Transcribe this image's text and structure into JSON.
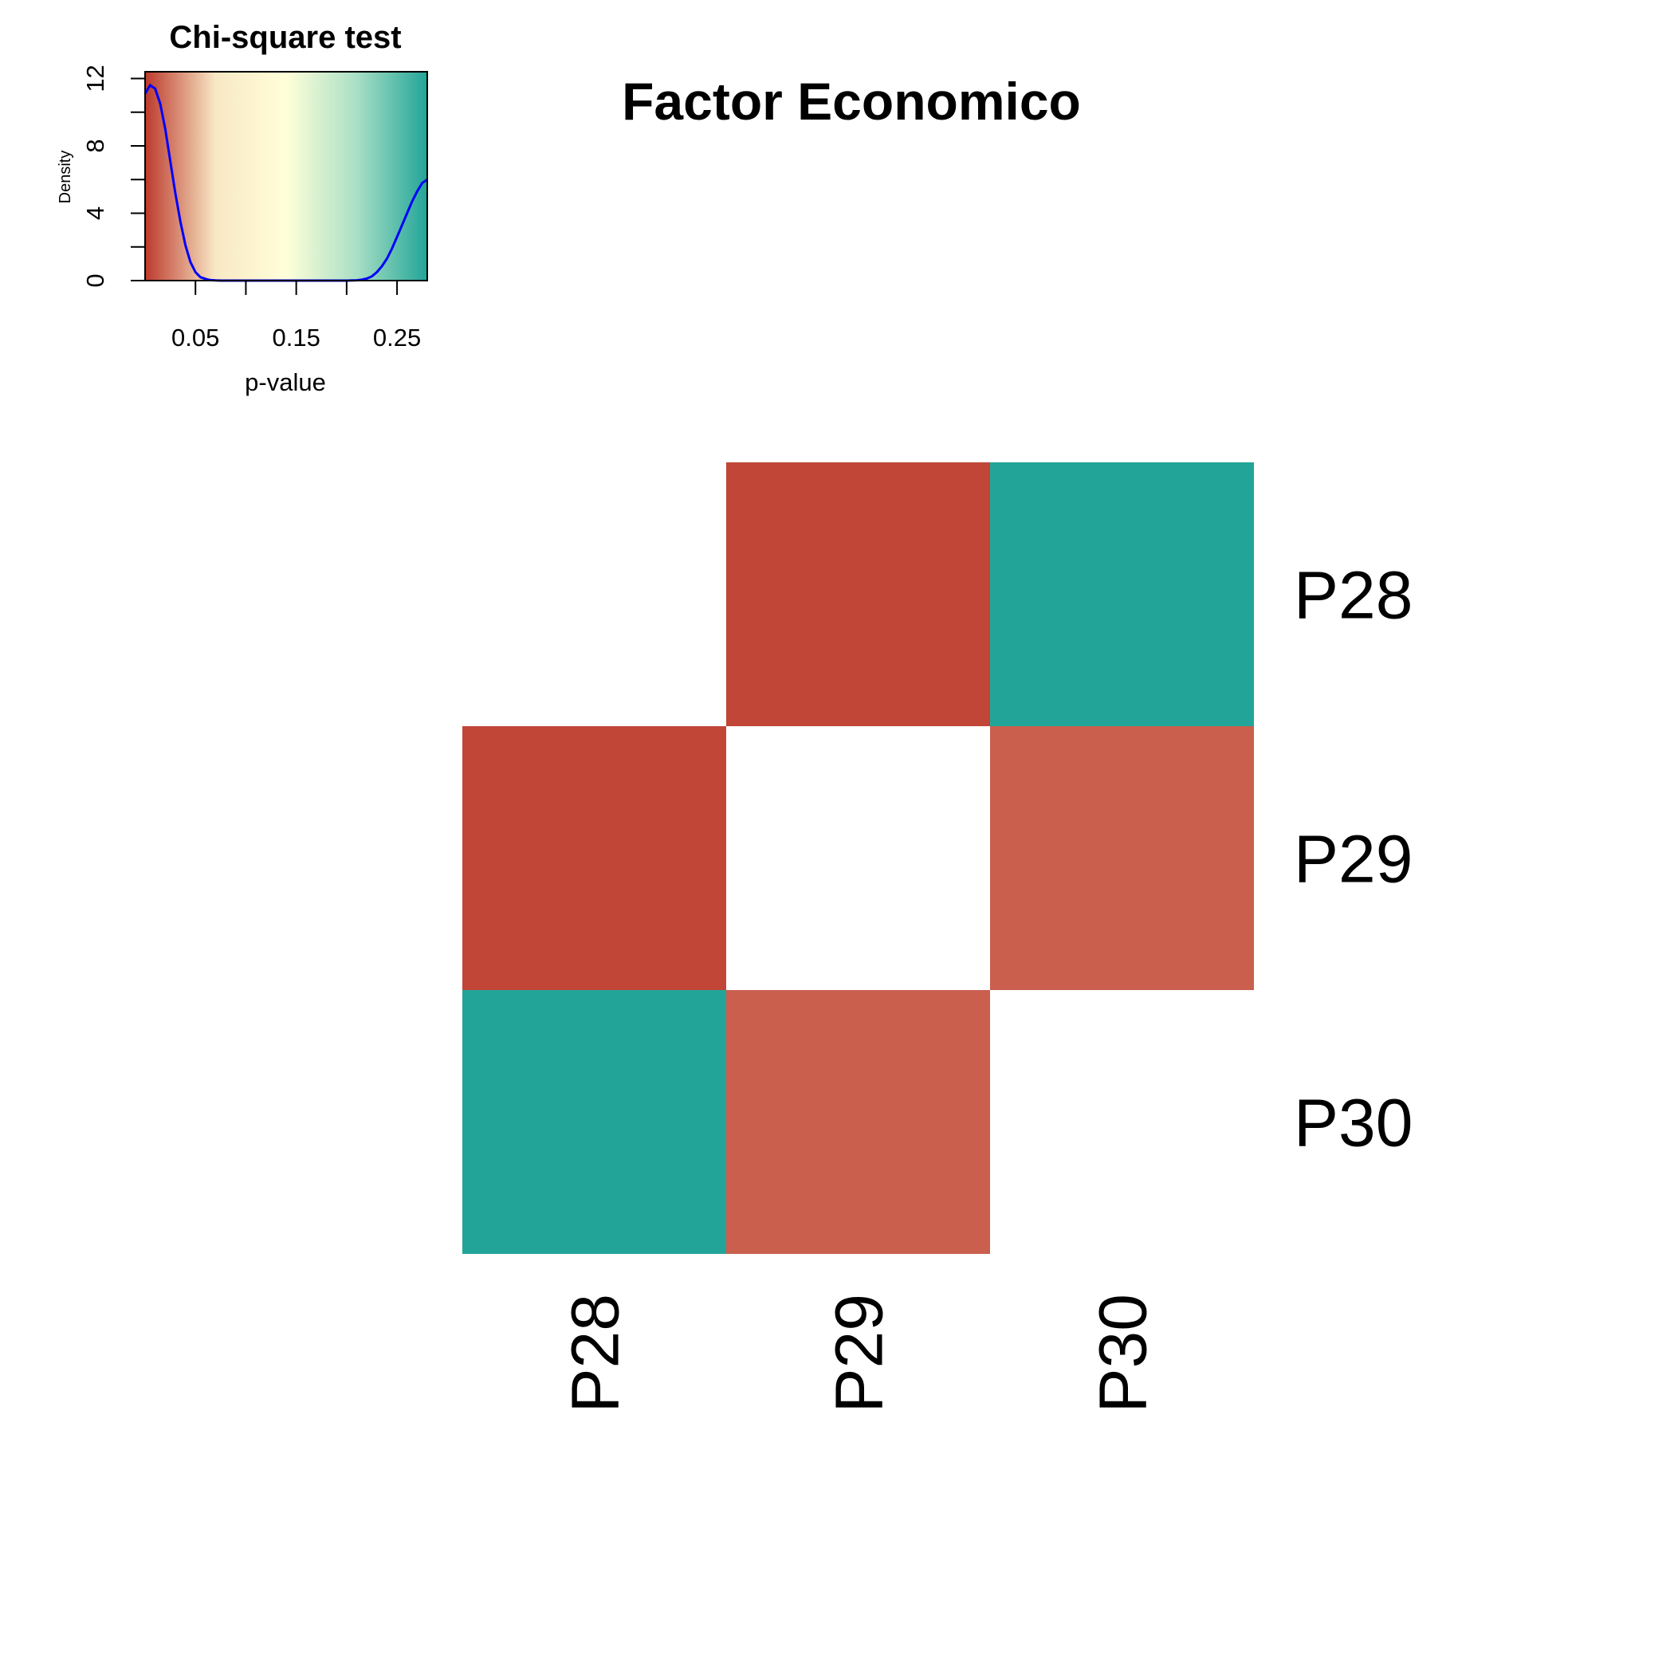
{
  "chart_data": [
    {
      "type": "heatmap",
      "title": "Factor Economico",
      "rows": [
        "P28",
        "P29",
        "P30"
      ],
      "columns": [
        "P28",
        "P29",
        "P30"
      ],
      "values": [
        [
          null,
          0.005,
          0.28
        ],
        [
          0.005,
          null,
          0.015
        ],
        [
          0.28,
          0.015,
          null
        ]
      ],
      "color_scale": {
        "min": 0.0,
        "max": 0.28,
        "stops": [
          "#bd392d",
          "#f8e8c4",
          "#ffffd9",
          "#a9dfc5",
          "#22a598"
        ]
      },
      "missing_color": "#ffffff"
    },
    {
      "type": "line",
      "title": "Chi-square test",
      "xlabel": "p-value",
      "ylabel": "Density",
      "xlim": [
        0.0,
        0.28
      ],
      "ylim": [
        0,
        12.4
      ],
      "x_ticks": [
        0.05,
        0.1,
        0.15,
        0.2,
        0.25
      ],
      "x_tick_labels": [
        "0.05",
        "0.15",
        "0.25"
      ],
      "x_tick_labels_at": [
        0.05,
        0.15,
        0.25
      ],
      "y_ticks": [
        0,
        2,
        4,
        6,
        8,
        10,
        12
      ],
      "y_tick_labels": [
        "0",
        "4",
        "8",
        "12"
      ],
      "y_tick_labels_at": [
        0,
        4,
        8,
        12
      ],
      "line_color": "#0000ff",
      "series": [
        {
          "x": [
            0.0,
            0.005,
            0.01,
            0.015,
            0.02,
            0.025,
            0.03,
            0.035,
            0.04,
            0.045,
            0.05,
            0.055,
            0.06,
            0.065,
            0.07,
            0.075,
            0.08,
            0.09,
            0.1,
            0.12,
            0.14,
            0.16,
            0.18,
            0.2,
            0.21,
            0.215,
            0.22,
            0.225,
            0.23,
            0.235,
            0.24,
            0.245,
            0.25,
            0.255,
            0.26,
            0.265,
            0.27,
            0.275,
            0.28
          ],
          "y": [
            11.1,
            11.6,
            11.4,
            10.5,
            9.0,
            7.1,
            5.2,
            3.5,
            2.1,
            1.1,
            0.5,
            0.2,
            0.1,
            0.03,
            0.01,
            0.0,
            0.0,
            0.0,
            0.0,
            0.0,
            0.0,
            0.0,
            0.0,
            0.0,
            0.02,
            0.05,
            0.12,
            0.25,
            0.5,
            0.85,
            1.3,
            1.9,
            2.6,
            3.3,
            4.0,
            4.7,
            5.3,
            5.8,
            6.0
          ]
        }
      ]
    }
  ]
}
